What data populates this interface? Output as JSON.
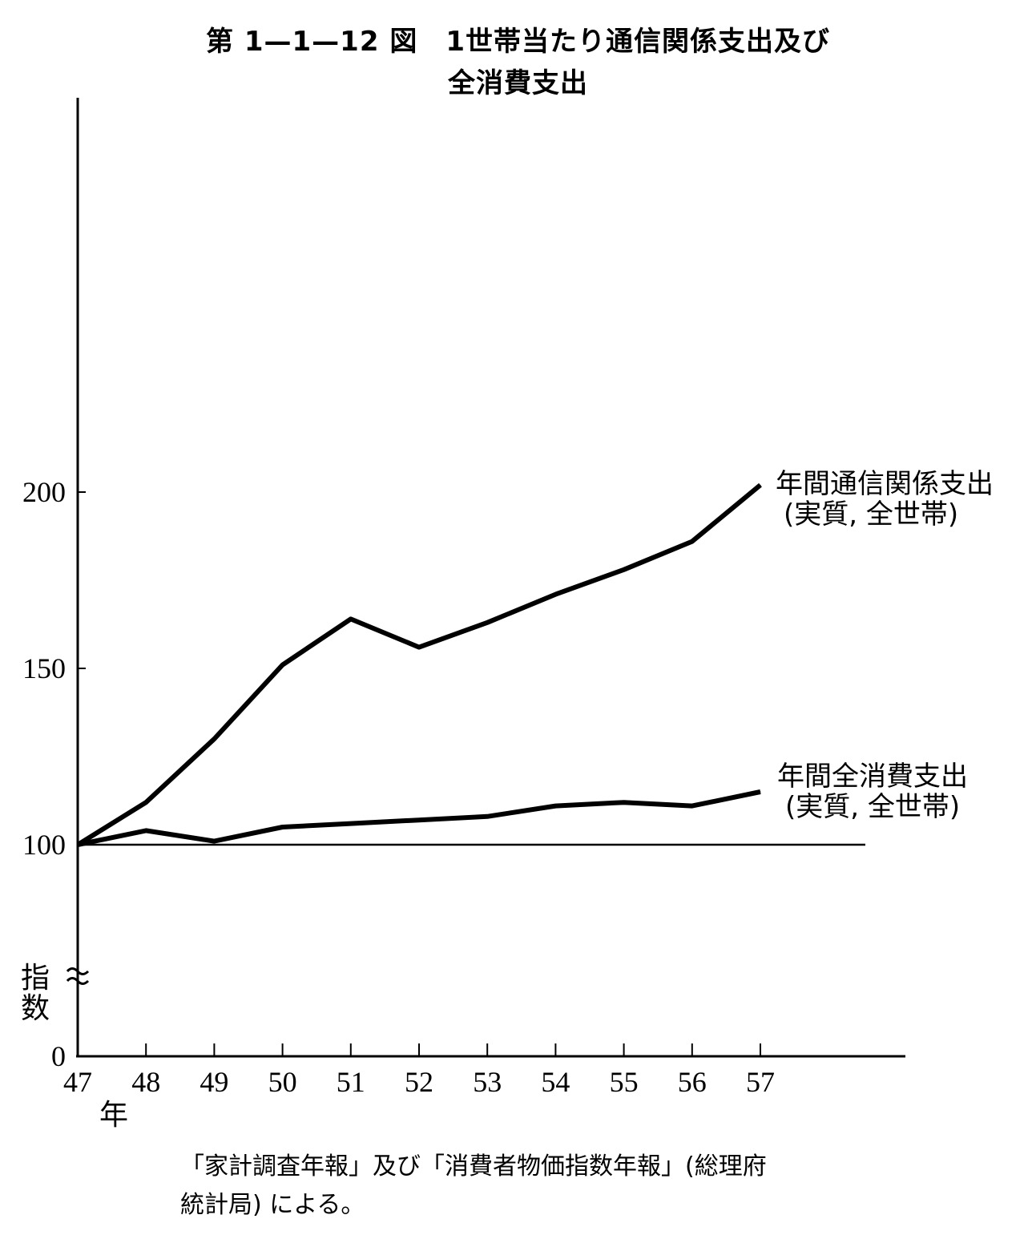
{
  "header": {
    "title_line1": "第 1—1—12 図　1世帯当たり通信関係支出及び",
    "title_line2": "全消費支出"
  },
  "chart_data": {
    "type": "line",
    "x": [
      "47",
      "48",
      "49",
      "50",
      "51",
      "52",
      "53",
      "54",
      "55",
      "56",
      "57"
    ],
    "xlabel": "年",
    "ylabel": "指数",
    "ylim": [
      0,
      200
    ],
    "yticks": [
      "0",
      "100",
      "150",
      "200"
    ],
    "axis_break": true,
    "grid": false,
    "reference_line": 100,
    "series": [
      {
        "name": "年間通信関係支出",
        "name_line2": "(実質, 全世帯)",
        "values": [
          100,
          112,
          130,
          151,
          164,
          156,
          163,
          171,
          178,
          186,
          202
        ]
      },
      {
        "name": "年間全消費支出",
        "name_line2": "(実質, 全世帯)",
        "values": [
          100,
          104,
          101,
          105,
          106,
          107,
          108,
          111,
          112,
          111,
          115
        ]
      }
    ],
    "line_color": "#000000"
  },
  "source": {
    "line1": "「家計調査年報」及び「消費者物価指数年報」(総理府",
    "line2": "統計局) による。"
  }
}
